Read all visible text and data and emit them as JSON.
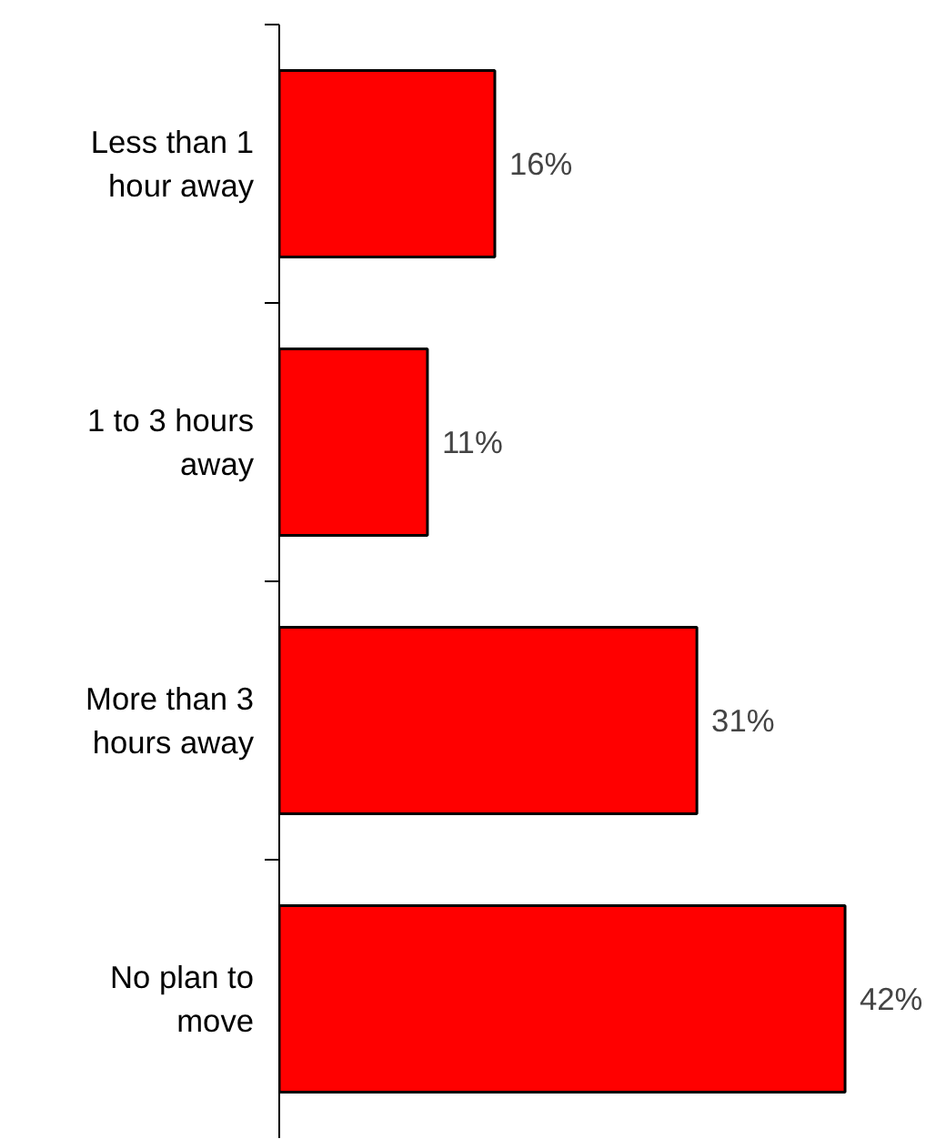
{
  "chart_data": {
    "type": "bar",
    "orientation": "horizontal",
    "categories": [
      "Less than 1 hour away",
      "1 to 3 hours away",
      "More than 3 hours away",
      "No plan to move"
    ],
    "values": [
      16,
      11,
      31,
      42
    ],
    "value_labels": [
      "16%",
      "11%",
      "31%",
      "42%"
    ],
    "color": "#ff0000",
    "grid": false
  }
}
